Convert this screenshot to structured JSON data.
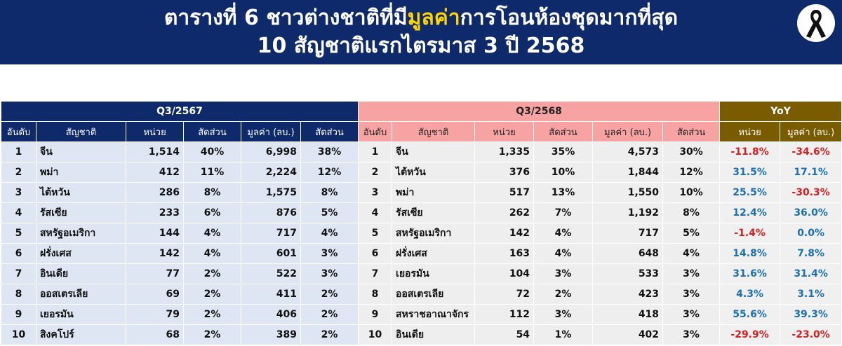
{
  "title": {
    "line1_pre": "ตารางที่ 6 ชาวต่างชาติที่มี",
    "line1_highlight": "มูลค่า",
    "line1_post": "การโอนห้องชุดมากที่สุด",
    "line2": "10 สัญชาติแรกไตรมาส 3 ปี 2568"
  },
  "icon": "black-mourning-ribbon-icon",
  "headers": {
    "q_prev": "Q3/2567",
    "q_curr": "Q3/2568",
    "yoy": "YoY",
    "rank": "อันดับ",
    "nationality": "สัญชาติ",
    "units": "หน่วย",
    "share": "สัดส่วน",
    "value": "มูลค่า (ลบ.)",
    "yoy_units": "หน่วย",
    "yoy_value": "มูลค่า (ลบ.)"
  },
  "rows": [
    {
      "r1": "1",
      "n1": "จีน",
      "u1": "1,514",
      "s1": "40%",
      "v1": "6,998",
      "vs1": "38%",
      "r2": "1",
      "n2": "จีน",
      "u2": "1,335",
      "s2": "35%",
      "v2": "4,573",
      "vs2": "30%",
      "yu": "-11.8%",
      "yv": "-34.6%"
    },
    {
      "r1": "2",
      "n1": "พม่า",
      "u1": "412",
      "s1": "11%",
      "v1": "2,224",
      "vs1": "12%",
      "r2": "2",
      "n2": "ไต้หวัน",
      "u2": "376",
      "s2": "10%",
      "v2": "1,844",
      "vs2": "12%",
      "yu": "31.5%",
      "yv": "17.1%"
    },
    {
      "r1": "3",
      "n1": "ไต้หวัน",
      "u1": "286",
      "s1": "8%",
      "v1": "1,575",
      "vs1": "8%",
      "r2": "3",
      "n2": "พม่า",
      "u2": "517",
      "s2": "13%",
      "v2": "1,550",
      "vs2": "10%",
      "yu": "25.5%",
      "yv": "-30.3%"
    },
    {
      "r1": "4",
      "n1": "รัสเซีย",
      "u1": "233",
      "s1": "6%",
      "v1": "876",
      "vs1": "5%",
      "r2": "4",
      "n2": "รัสเซีย",
      "u2": "262",
      "s2": "7%",
      "v2": "1,192",
      "vs2": "8%",
      "yu": "12.4%",
      "yv": "36.0%"
    },
    {
      "r1": "5",
      "n1": "สหรัฐอเมริกา",
      "u1": "144",
      "s1": "4%",
      "v1": "717",
      "vs1": "4%",
      "r2": "5",
      "n2": "สหรัฐอเมริกา",
      "u2": "142",
      "s2": "4%",
      "v2": "717",
      "vs2": "5%",
      "yu": "-1.4%",
      "yv": "0.0%"
    },
    {
      "r1": "6",
      "n1": "ฝรั่งเศส",
      "u1": "142",
      "s1": "4%",
      "v1": "601",
      "vs1": "3%",
      "r2": "6",
      "n2": "ฝรั่งเศส",
      "u2": "163",
      "s2": "4%",
      "v2": "648",
      "vs2": "4%",
      "yu": "14.8%",
      "yv": "7.8%"
    },
    {
      "r1": "7",
      "n1": "อินเดีย",
      "u1": "77",
      "s1": "2%",
      "v1": "522",
      "vs1": "3%",
      "r2": "7",
      "n2": "เยอรมัน",
      "u2": "104",
      "s2": "3%",
      "v2": "533",
      "vs2": "3%",
      "yu": "31.6%",
      "yv": "31.4%"
    },
    {
      "r1": "8",
      "n1": "ออสเตรเลีย",
      "u1": "69",
      "s1": "2%",
      "v1": "411",
      "vs1": "2%",
      "r2": "8",
      "n2": "ออสเตรเลีย",
      "u2": "72",
      "s2": "2%",
      "v2": "423",
      "vs2": "3%",
      "yu": "4.3%",
      "yv": "3.1%"
    },
    {
      "r1": "9",
      "n1": "เยอรมัน",
      "u1": "79",
      "s1": "2%",
      "v1": "406",
      "vs1": "2%",
      "r2": "9",
      "n2": "สหราชอาณาจักร",
      "u2": "112",
      "s2": "3%",
      "v2": "418",
      "vs2": "3%",
      "yu": "55.6%",
      "yv": "39.3%"
    },
    {
      "r1": "10",
      "n1": "สิงคโปร์",
      "u1": "68",
      "s1": "2%",
      "v1": "389",
      "vs1": "2%",
      "r2": "10",
      "n2": "อินเดีย",
      "u2": "54",
      "s2": "1%",
      "v2": "402",
      "vs2": "3%",
      "yu": "-29.9%",
      "yv": "-23.0%"
    }
  ],
  "colors": {
    "header_navy": "#0f2a6b",
    "header_pink": "#f8a3a3",
    "header_olive": "#7a5c00",
    "highlight_yellow": "#ffd400",
    "positive_blue": "#1a6fb5",
    "negative_red": "#d81f1f"
  }
}
